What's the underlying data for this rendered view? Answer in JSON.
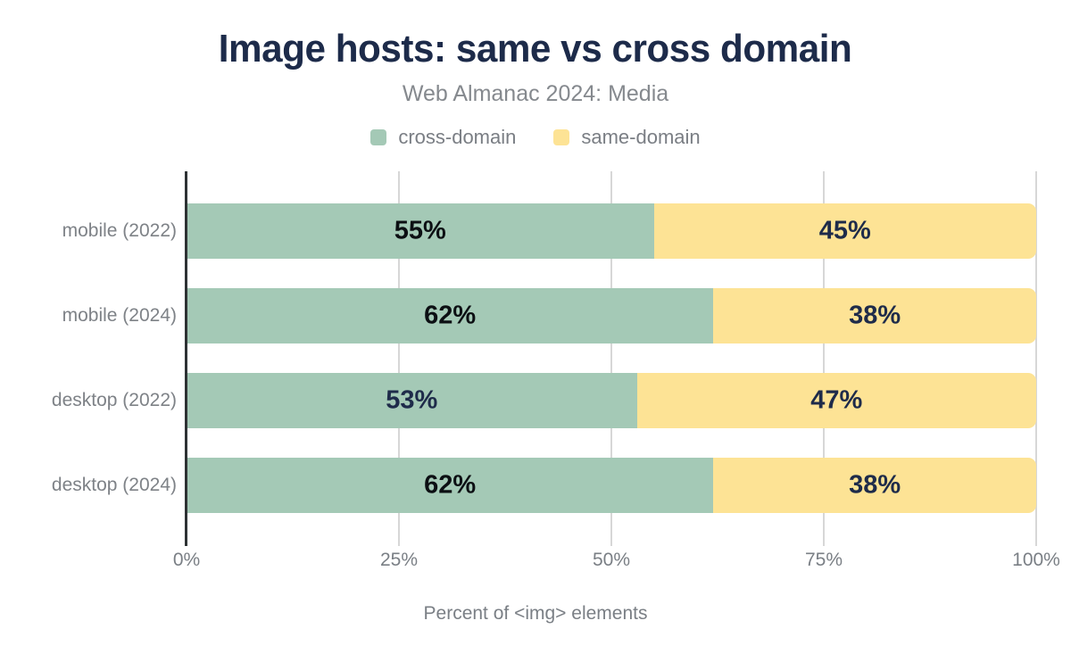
{
  "title": "Image hosts: same vs cross domain",
  "subtitle": "Web Almanac 2024: Media",
  "colors": {
    "title_navy": "#1d2b4a",
    "cross_domain_green": "#a4c9b6",
    "same_domain_yellow": "#fde395",
    "gridline_gray": "#d7d7d7",
    "axis_line_dark": "#2e3234",
    "muted_text_gray": "#7e8287",
    "value_label_dark": "#0c0f13",
    "value_label_navy": "#1e2b4a"
  },
  "chart_data": {
    "type": "bar",
    "orientation": "horizontal",
    "stacked": true,
    "title": "Image hosts: same vs cross domain",
    "subtitle": "Web Almanac 2024: Media",
    "categories": [
      "mobile (2022)",
      "mobile (2024)",
      "desktop (2022)",
      "desktop (2024)"
    ],
    "series": [
      {
        "name": "cross-domain",
        "color": "#a4c9b6",
        "values": [
          55,
          62,
          53,
          62
        ],
        "value_labels": [
          "55%",
          "62%",
          "53%",
          "62%"
        ],
        "label_colors": [
          "#0c0f13",
          "#0c0f13",
          "#1e2b4a",
          "#0c0f13"
        ]
      },
      {
        "name": "same-domain",
        "color": "#fde395",
        "values": [
          45,
          38,
          47,
          38
        ],
        "value_labels": [
          "45%",
          "38%",
          "47%",
          "38%"
        ],
        "label_colors": [
          "#1e2b4a",
          "#1e2b4a",
          "#1e2b4a",
          "#1e2b4a"
        ]
      }
    ],
    "xlabel": "Percent of <img> elements",
    "ylabel": "",
    "x_ticks": [
      0,
      25,
      50,
      75,
      100
    ],
    "x_tick_labels": [
      "0%",
      "25%",
      "50%",
      "75%",
      "100%"
    ],
    "xlim": [
      0,
      100
    ],
    "grid": "vertical",
    "legend_position": "top"
  }
}
